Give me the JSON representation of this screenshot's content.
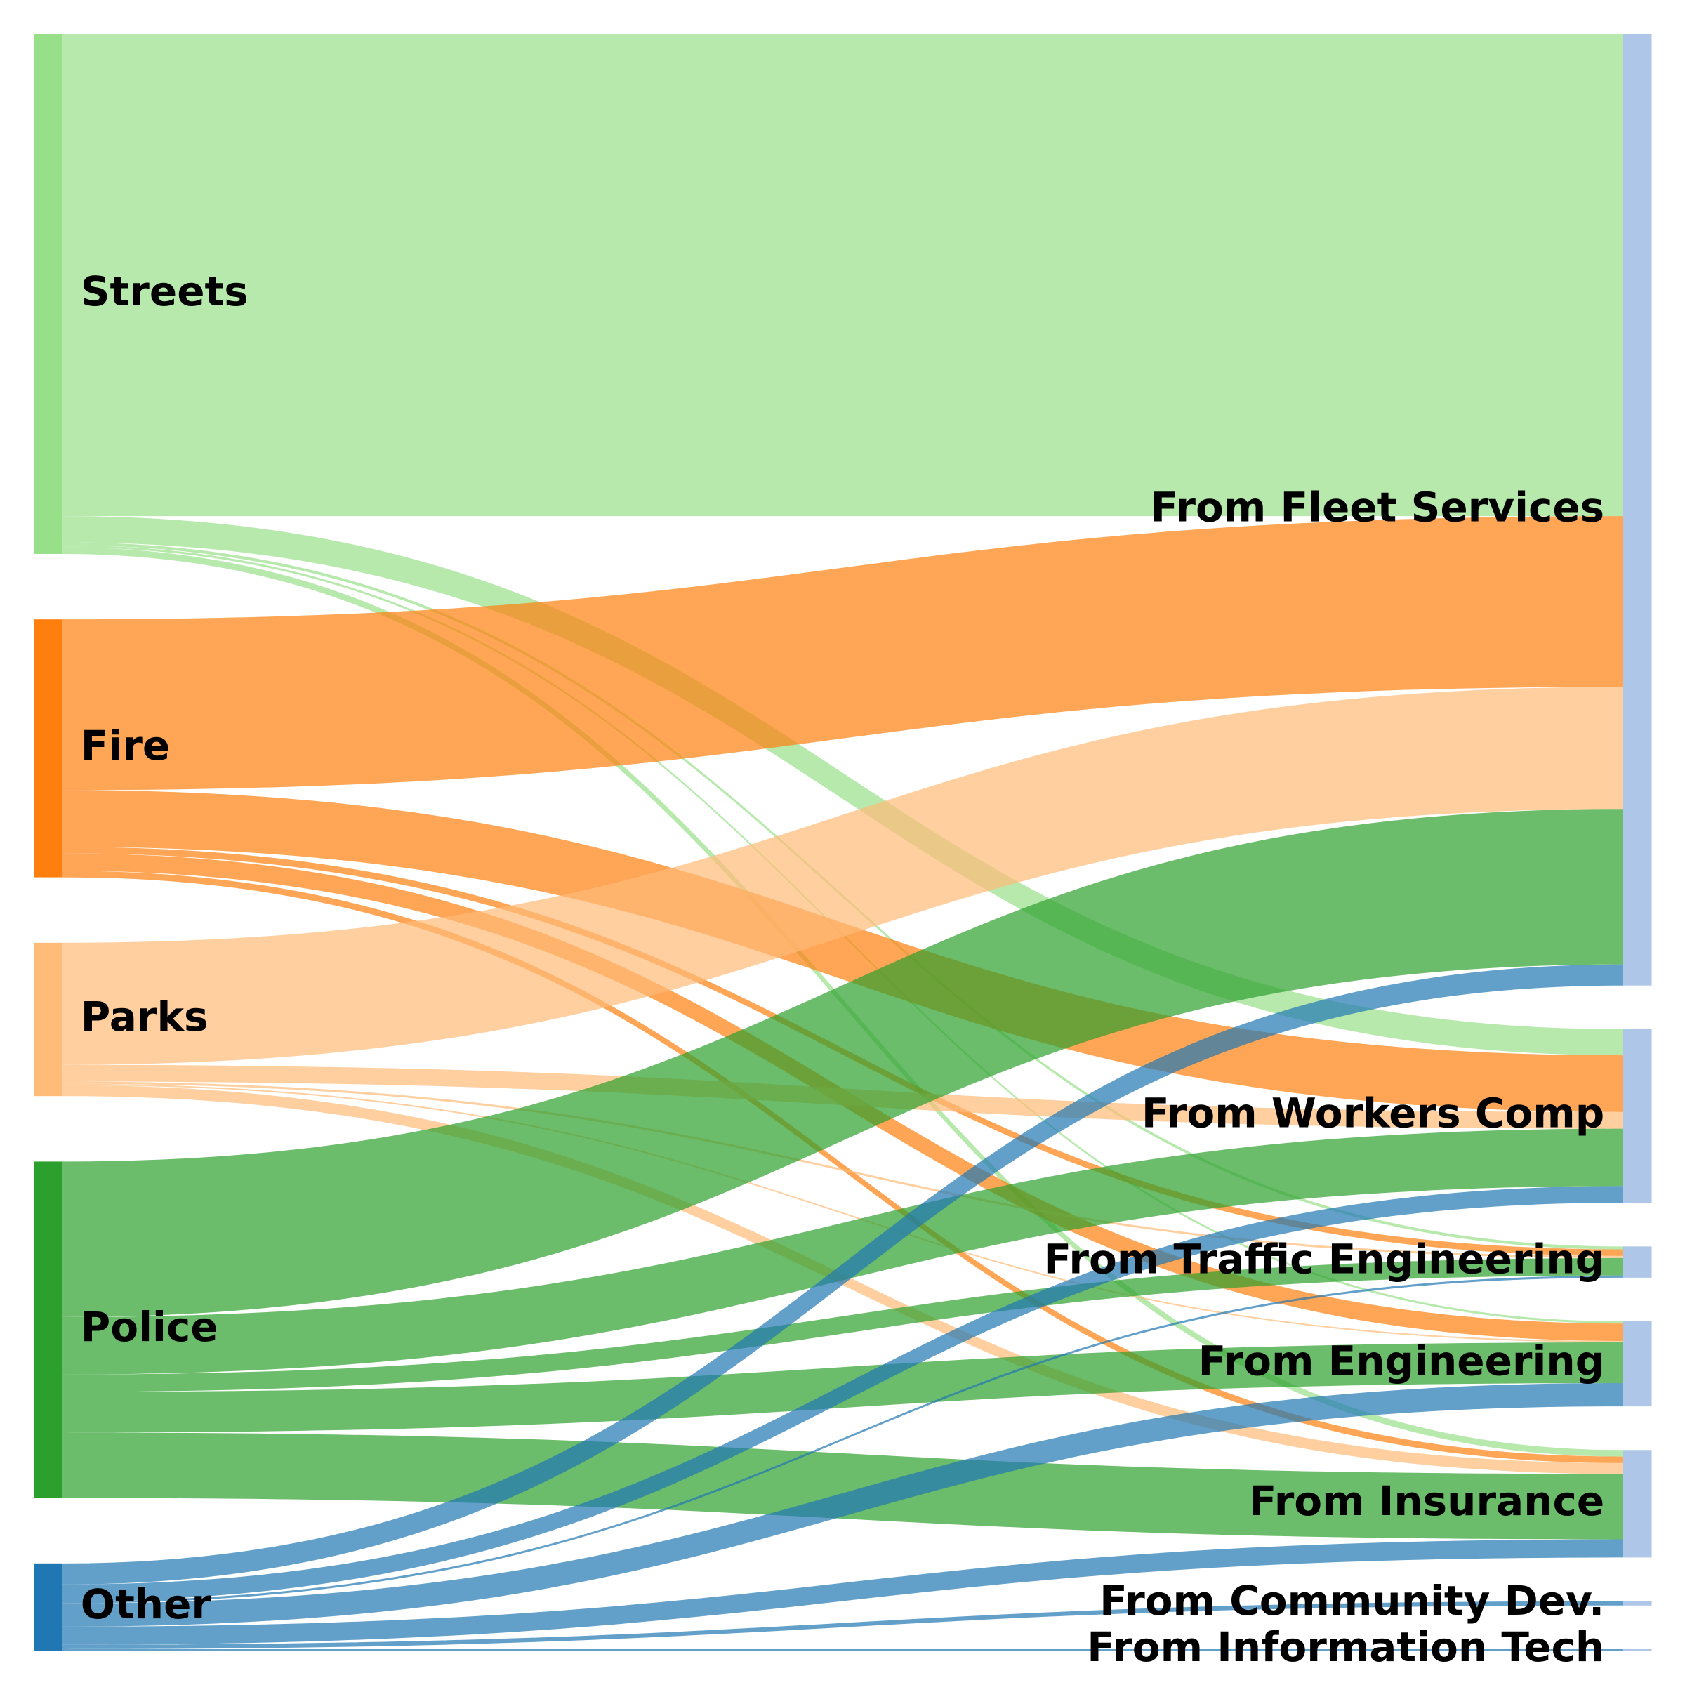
{
  "chart_data": {
    "type": "sankey",
    "title": "",
    "sources": [
      {
        "id": "streets",
        "label": "Streets",
        "color": "#98df8a"
      },
      {
        "id": "fire",
        "label": "Fire",
        "color": "#ff7f0e"
      },
      {
        "id": "parks",
        "label": "Parks",
        "color": "#ffbb78"
      },
      {
        "id": "police",
        "label": "Police",
        "color": "#2ca02c"
      },
      {
        "id": "other",
        "label": "Other",
        "color": "#1f77b4"
      }
    ],
    "targets": [
      {
        "id": "fleet",
        "label": "From Fleet Services",
        "color": "#aec7e8"
      },
      {
        "id": "workers",
        "label": "From Workers Comp",
        "color": "#aec7e8"
      },
      {
        "id": "traffic",
        "label": "From Traffic Engineering",
        "color": "#aec7e8"
      },
      {
        "id": "engineering",
        "label": "From Engineering",
        "color": "#aec7e8"
      },
      {
        "id": "insurance",
        "label": "From Insurance",
        "color": "#aec7e8"
      },
      {
        "id": "community",
        "label": "From Community Dev.",
        "color": "#aec7e8"
      },
      {
        "id": "it",
        "label": "From Information Tech",
        "color": "#aec7e8"
      }
    ],
    "links": [
      {
        "source": "streets",
        "target": "fleet",
        "value": 663
      },
      {
        "source": "streets",
        "target": "workers",
        "value": 36
      },
      {
        "source": "streets",
        "target": "traffic",
        "value": 4
      },
      {
        "source": "streets",
        "target": "engineering",
        "value": 3
      },
      {
        "source": "streets",
        "target": "insurance",
        "value": 9
      },
      {
        "source": "fire",
        "target": "fleet",
        "value": 235
      },
      {
        "source": "fire",
        "target": "workers",
        "value": 78
      },
      {
        "source": "fire",
        "target": "traffic",
        "value": 9
      },
      {
        "source": "fire",
        "target": "engineering",
        "value": 24
      },
      {
        "source": "fire",
        "target": "insurance",
        "value": 9
      },
      {
        "source": "parks",
        "target": "fleet",
        "value": 168
      },
      {
        "source": "parks",
        "target": "workers",
        "value": 23
      },
      {
        "source": "parks",
        "target": "traffic",
        "value": 3
      },
      {
        "source": "parks",
        "target": "engineering",
        "value": 2
      },
      {
        "source": "parks",
        "target": "insurance",
        "value": 15
      },
      {
        "source": "police",
        "target": "fleet",
        "value": 214
      },
      {
        "source": "police",
        "target": "workers",
        "value": 79
      },
      {
        "source": "police",
        "target": "traffic",
        "value": 24
      },
      {
        "source": "police",
        "target": "engineering",
        "value": 56
      },
      {
        "source": "police",
        "target": "insurance",
        "value": 90
      },
      {
        "source": "other",
        "target": "fleet",
        "value": 29
      },
      {
        "source": "other",
        "target": "workers",
        "value": 23
      },
      {
        "source": "other",
        "target": "traffic",
        "value": 3
      },
      {
        "source": "other",
        "target": "engineering",
        "value": 32
      },
      {
        "source": "other",
        "target": "insurance",
        "value": 25
      },
      {
        "source": "other",
        "target": "community",
        "value": 6
      },
      {
        "source": "other",
        "target": "it",
        "value": 2
      }
    ]
  }
}
